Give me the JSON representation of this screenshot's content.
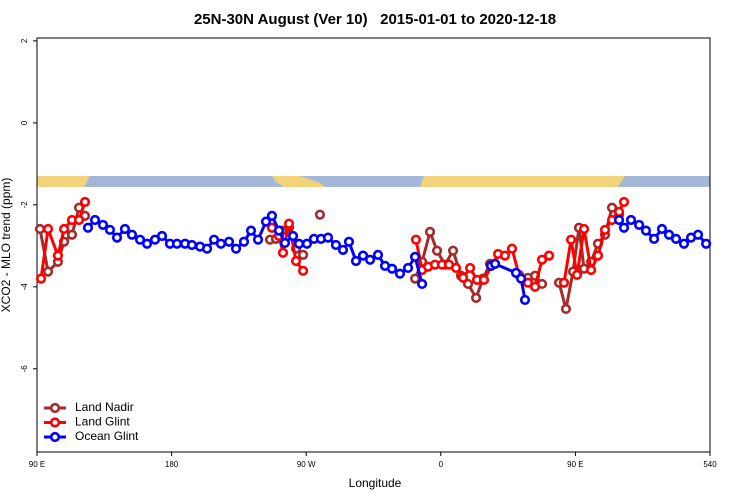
{
  "chart_data": {
    "type": "line",
    "title": "25N-30N August (Ver 10)   2015-01-01 to 2020-12-18",
    "x_label": "Longitude",
    "y_label": "XCO2 - MLO trend (ppm)",
    "xlim": [
      90,
      540
    ],
    "ylim": [
      -8.03,
      2.07
    ],
    "xticks": [
      {
        "value": 90,
        "label": "90 E"
      },
      180,
      {
        "value": 270,
        "label": "90 W"
      },
      {
        "value": 360,
        "label": "0"
      },
      {
        "value": 450,
        "label": "90 E"
      },
      540
    ],
    "yticks": [
      -6,
      -4,
      -2,
      0,
      2
    ],
    "legend": "bottom-left",
    "series": [
      {
        "name": "Land Nadir",
        "color": "#a52a2a",
        "x": [
          92.0,
          97.4,
          104.0,
          108.1,
          113.4,
          118.1,
          122.1,
          190,
          245.8,
          249.8,
          253.8,
          258.5,
          263.2,
          267.9,
          273,
          279.2,
          330,
          342.8,
          347.5,
          352.8,
          357.5,
          362.8,
          368.2,
          373.5,
          378.2,
          383.6,
          388.2,
          392.9,
          400,
          418.3,
          423.0,
          427.7,
          435,
          439.1,
          443.7,
          448.4,
          452.4,
          455.8,
          460.5,
          465.1,
          469.8,
          474.5,
          479.2
        ],
        "values": [
          -2.59,
          -3.63,
          -3.39,
          -2.9,
          -2.73,
          -2.07,
          -2.27,
          null,
          -2.85,
          -2.83,
          -2.63,
          -2.56,
          -3.07,
          -3.22,
          null,
          -2.24,
          null,
          -3.8,
          -3.39,
          -2.66,
          -3.12,
          -3.46,
          -3.12,
          -3.73,
          -3.93,
          -4.27,
          -3.8,
          -3.44,
          null,
          -3.78,
          -3.73,
          -3.93,
          null,
          -3.9,
          -4.54,
          -3.63,
          -2.56,
          -3.56,
          -3.39,
          -2.95,
          -2.73,
          -2.07,
          -2.24
        ]
      },
      {
        "name": "Land Glint",
        "color": "#ff0000",
        "x": [
          92.7,
          97.4,
          104.0,
          108.1,
          113.4,
          118.1,
          122.1,
          190,
          247.1,
          251.8,
          254.5,
          258.5,
          263.2,
          267.9,
          300,
          343.4,
          347.5,
          351.5,
          356.1,
          360.8,
          365.5,
          370.2,
          374.9,
          379.6,
          384.2,
          388.9,
          398.3,
          402.9,
          407.6,
          412.3,
          418.3,
          423.0,
          427.7,
          432.4,
          437,
          442.4,
          447.1,
          451.1,
          455.8,
          460.5,
          465.1,
          469.8,
          474.5,
          479.2,
          482.5
        ],
        "values": [
          -3.8,
          -2.59,
          -3.24,
          -2.59,
          -2.37,
          -2.37,
          -1.93,
          null,
          -2.56,
          -2.76,
          -3.17,
          -2.46,
          -3.37,
          -3.61,
          null,
          -2.85,
          -3.59,
          -3.51,
          -3.46,
          -3.46,
          -3.46,
          -3.54,
          -3.78,
          -3.54,
          -3.83,
          -3.83,
          -3.2,
          -3.24,
          -3.07,
          -3.71,
          -3.9,
          -4.0,
          -3.34,
          -3.24,
          null,
          -3.9,
          -2.85,
          -3.71,
          -2.59,
          -3.59,
          -3.24,
          -2.61,
          -2.37,
          -2.17,
          -1.93
        ]
      },
      {
        "name": "Ocean Glint",
        "color": "#0000ff",
        "x": [
          124.1,
          128.8,
          134.1,
          138.8,
          143.5,
          148.8,
          153.5,
          158.9,
          163.6,
          168.9,
          173.6,
          178.9,
          183.6,
          189.0,
          193.6,
          199.0,
          203.7,
          208.4,
          213.0,
          218.4,
          223.1,
          228.4,
          233.1,
          237.8,
          243.1,
          247.1,
          251.8,
          255.8,
          261.2,
          265.2,
          270.5,
          275.2,
          279.9,
          284.6,
          289.9,
          294.6,
          298.6,
          303.3,
          308.0,
          312.7,
          318.0,
          322.7,
          327.4,
          332.7,
          338.1,
          342.8,
          347.5,
          370,
          393.6,
          396.3,
          410.3,
          413.7,
          416.3,
          450,
          479.2,
          482.5,
          487.2,
          492.6,
          497.2,
          502.6,
          507.9,
          512.6,
          517.3,
          522.6,
          527.3,
          532.0,
          537.4
        ],
        "values": [
          -2.56,
          -2.37,
          -2.49,
          -2.61,
          -2.8,
          -2.59,
          -2.73,
          -2.85,
          -2.95,
          -2.85,
          -2.76,
          -2.95,
          -2.95,
          -2.95,
          -2.98,
          -3.02,
          -3.07,
          -2.85,
          -2.95,
          -2.9,
          -3.07,
          -2.9,
          -2.63,
          -2.85,
          -2.41,
          -2.27,
          -2.63,
          -2.93,
          -2.76,
          -2.95,
          -2.95,
          -2.83,
          -2.83,
          -2.8,
          -2.98,
          -3.1,
          -2.9,
          -3.37,
          -3.24,
          -3.34,
          -3.22,
          -3.49,
          -3.56,
          -3.68,
          -3.54,
          -3.27,
          -3.93,
          null,
          -3.49,
          -3.44,
          -3.66,
          -3.8,
          -4.32,
          null,
          -2.37,
          -2.56,
          -2.37,
          -2.49,
          -2.63,
          -2.83,
          -2.59,
          -2.73,
          -2.83,
          -2.95,
          -2.8,
          -2.73,
          -2.95
        ]
      }
    ]
  }
}
